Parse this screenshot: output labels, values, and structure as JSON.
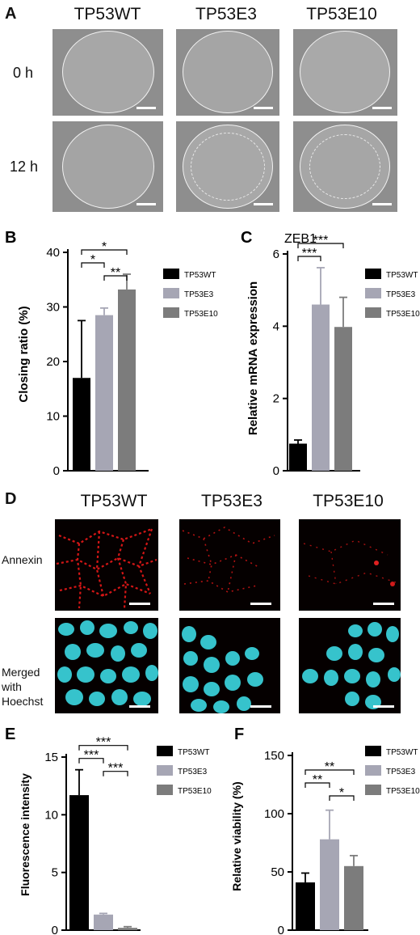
{
  "panelA": {
    "letter": "A",
    "columns": [
      "TP53WT",
      "TP53E3",
      "TP53E10"
    ],
    "rows": [
      "0 h",
      "12 h"
    ]
  },
  "panelD": {
    "letter": "D",
    "columns": [
      "TP53WT",
      "TP53E3",
      "TP53E10"
    ],
    "row1": "Annexin",
    "row2_line1": "Merged",
    "row2_line2": "with",
    "row2_line3": "Hoechst"
  },
  "colors": {
    "wt": "#000000",
    "e3": "#a6a6b4",
    "e10": "#7c7c7c",
    "annexin": "#e01818",
    "hoechst": "#38c7cf"
  },
  "chart_data": [
    {
      "id": "B",
      "letter": "B",
      "type": "bar",
      "title": "",
      "ylabel": "Closing ratio (%)",
      "ylim": [
        0,
        40
      ],
      "yticks": [
        0,
        10,
        20,
        30,
        40
      ],
      "categories": [
        "TP53WT",
        "TP53E3",
        "TP53E10"
      ],
      "values": [
        17,
        28.5,
        33.2
      ],
      "errors": [
        10.5,
        1.3,
        2.8
      ],
      "legend": [
        "TP53WT",
        "TP53E3",
        "TP53E10"
      ],
      "significance": [
        {
          "from": 0,
          "to": 1,
          "label": "*"
        },
        {
          "from": 0,
          "to": 2,
          "label": "*"
        },
        {
          "from": 1,
          "to": 2,
          "label": "**"
        }
      ]
    },
    {
      "id": "C",
      "letter": "C",
      "type": "bar",
      "title": "ZEB1",
      "ylabel": "Relative mRNA expression",
      "ylim": [
        0,
        6
      ],
      "yticks": [
        0,
        2,
        4,
        6
      ],
      "categories": [
        "TP53WT",
        "TP53E3",
        "TP53E10"
      ],
      "values": [
        0.75,
        4.6,
        3.98
      ],
      "errors": [
        0.1,
        1.02,
        0.82
      ],
      "legend": [
        "TP53WT",
        "TP53E3",
        "TP53E10"
      ],
      "significance": [
        {
          "from": 0,
          "to": 1,
          "label": "***"
        },
        {
          "from": 0,
          "to": 2,
          "label": "***"
        }
      ]
    },
    {
      "id": "E",
      "letter": "E",
      "type": "bar",
      "title": "",
      "ylabel": "Fluorescence intensity",
      "ylim": [
        0,
        15
      ],
      "yticks": [
        0,
        5,
        10,
        15
      ],
      "categories": [
        "TP53WT",
        "TP53E3",
        "TP53E10"
      ],
      "values": [
        11.7,
        1.35,
        0.2
      ],
      "errors": [
        2.2,
        0.1,
        0.1
      ],
      "legend": [
        "TP53WT",
        "TP53E3",
        "TP53E10"
      ],
      "significance": [
        {
          "from": 0,
          "to": 1,
          "label": "***"
        },
        {
          "from": 0,
          "to": 2,
          "label": "***"
        },
        {
          "from": 1,
          "to": 2,
          "label": "***"
        }
      ]
    },
    {
      "id": "F",
      "letter": "F",
      "type": "bar",
      "title": "",
      "ylabel": "Relative viability (%)",
      "ylim": [
        0,
        150
      ],
      "yticks": [
        0,
        50,
        100,
        150
      ],
      "categories": [
        "TP53WT",
        "TP53E3",
        "TP53E10"
      ],
      "values": [
        41,
        78,
        55
      ],
      "errors": [
        8,
        25,
        9
      ],
      "legend": [
        "TP53WT",
        "TP53E3",
        "TP53E10"
      ],
      "significance": [
        {
          "from": 0,
          "to": 1,
          "label": "**"
        },
        {
          "from": 0,
          "to": 2,
          "label": "**"
        },
        {
          "from": 1,
          "to": 2,
          "label": "*"
        }
      ]
    }
  ]
}
